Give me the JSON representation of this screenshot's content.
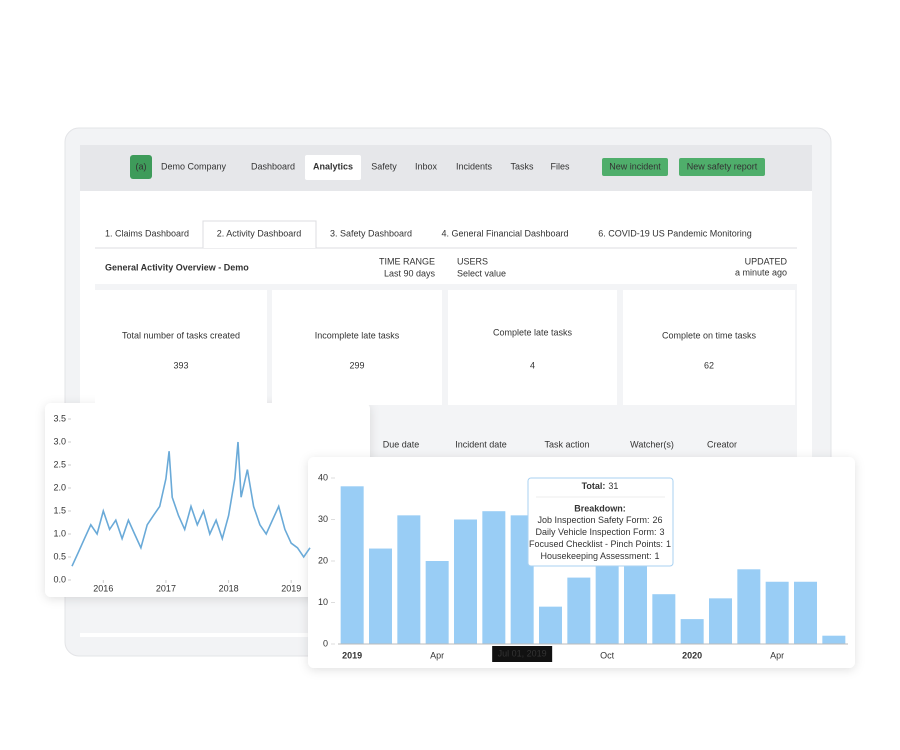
{
  "nav": {
    "logo": "(a)",
    "company": "Demo Company",
    "items": [
      {
        "label": "Dashboard"
      },
      {
        "label": "Analytics",
        "active": true
      },
      {
        "label": "Safety"
      },
      {
        "label": "Inbox"
      },
      {
        "label": "Incidents"
      },
      {
        "label": "Tasks"
      },
      {
        "label": "Files"
      }
    ],
    "buttons": [
      "New incident",
      "New safety report"
    ]
  },
  "tabs": [
    {
      "label": "1. Claims Dashboard"
    },
    {
      "label": "2. Activity Dashboard",
      "active": true
    },
    {
      "label": "3. Safety Dashboard"
    },
    {
      "label": "4. General Financial Dashboard"
    },
    {
      "label": "6. COVID-19 US Pandemic Monitoring"
    }
  ],
  "overview": {
    "title": "General Activity Overview - Demo",
    "filters": [
      {
        "label": "TIME RANGE",
        "value": "Last 90 days"
      },
      {
        "label": "USERS",
        "value": "Select value"
      }
    ],
    "updated": {
      "label": "UPDATED",
      "value": "a minute ago"
    }
  },
  "kpis": [
    {
      "label": "Total number of tasks created",
      "value": 393,
      "color": "#222222"
    },
    {
      "label": "Incomplete late tasks",
      "value": 299,
      "color": "#e53935"
    },
    {
      "label": "Complete late tasks",
      "value": 4,
      "color": "#f5a623"
    },
    {
      "label": "Complete on time tasks",
      "value": 62,
      "color": "#3d8b37"
    }
  ],
  "table": {
    "columns": [
      "Due date",
      "Incident date",
      "Task action",
      "Watcher(s)",
      "Creator"
    ]
  },
  "chart_data": [
    {
      "type": "line",
      "color": "#6aaad8",
      "x": [
        2015.5,
        2015.6,
        2015.7,
        2015.8,
        2015.9,
        2016.0,
        2016.1,
        2016.2,
        2016.3,
        2016.4,
        2016.5,
        2016.6,
        2016.7,
        2016.8,
        2016.9,
        2017.0,
        2017.05,
        2017.1,
        2017.2,
        2017.3,
        2017.4,
        2017.5,
        2017.6,
        2017.7,
        2017.8,
        2017.9,
        2018.0,
        2018.1,
        2018.15,
        2018.2,
        2018.3,
        2018.4,
        2018.5,
        2018.6,
        2018.7,
        2018.8,
        2018.9,
        2019.0,
        2019.1,
        2019.2,
        2019.3
      ],
      "values": [
        0.3,
        0.6,
        0.9,
        1.2,
        1.0,
        1.5,
        1.1,
        1.3,
        0.9,
        1.3,
        1.0,
        0.7,
        1.2,
        1.4,
        1.6,
        2.2,
        2.8,
        1.8,
        1.4,
        1.1,
        1.6,
        1.2,
        1.5,
        1.0,
        1.3,
        0.9,
        1.4,
        2.2,
        3.0,
        1.8,
        2.4,
        1.6,
        1.2,
        1.0,
        1.3,
        1.6,
        1.1,
        0.8,
        0.7,
        0.5,
        0.7
      ],
      "xlim": [
        2015.5,
        2019.3
      ],
      "xticks": [
        2016,
        2017,
        2018,
        2019
      ],
      "ylim": [
        0,
        3.5
      ],
      "yticks": [
        {
          "value": 0,
          "label": "0.0"
        },
        0.5,
        {
          "value": 1,
          "label": "1.0"
        },
        1.5,
        {
          "value": 2,
          "label": "2.0"
        },
        2.5,
        {
          "value": 3,
          "label": "3.0"
        },
        3.5
      ]
    },
    {
      "type": "bar",
      "color": "#99cdf5",
      "categories": [
        "2019",
        null,
        null,
        "Apr",
        null,
        null,
        null,
        null,
        null,
        "Oct",
        null,
        null,
        "2020",
        null,
        null,
        "Apr",
        null,
        null
      ],
      "values": [
        38,
        23,
        31,
        20,
        30,
        32,
        31,
        9,
        16,
        21,
        21,
        12,
        6,
        11,
        18,
        15,
        15,
        2
      ],
      "ylim": [
        0,
        40
      ],
      "yticks": [
        0,
        10,
        20,
        30,
        40
      ],
      "cursor_label": "Jul 01, 2019",
      "tooltip": {
        "total_label": "Total:",
        "total": 31,
        "breakdown_title": "Breakdown:",
        "items": [
          {
            "label": "Job Inspection Safety Form:",
            "value": 26
          },
          {
            "label": "Daily Vehicle Inspection Form:",
            "value": 3
          },
          {
            "label": "Focused Checklist - Pinch Points:",
            "value": 1
          },
          {
            "label": "Housekeeping Assessment:",
            "value": 1
          }
        ]
      }
    }
  ]
}
